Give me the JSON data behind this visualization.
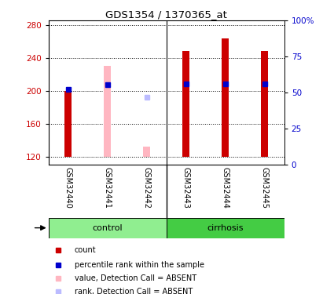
{
  "title": "GDS1354 / 1370365_at",
  "samples": [
    "GSM32440",
    "GSM32441",
    "GSM32442",
    "GSM32443",
    "GSM32444",
    "GSM32445"
  ],
  "groups": [
    "control",
    "control",
    "control",
    "cirrhosis",
    "cirrhosis",
    "cirrhosis"
  ],
  "ylim_left": [
    110,
    285
  ],
  "ylim_right": [
    0,
    100
  ],
  "yticks_left": [
    120,
    160,
    200,
    240,
    280
  ],
  "yticks_right": [
    0,
    25,
    50,
    75,
    100
  ],
  "red_bars": {
    "bottom": [
      120,
      120,
      120,
      120,
      120,
      120
    ],
    "top": [
      200,
      120,
      120,
      248,
      263,
      248
    ]
  },
  "pink_bars": {
    "bottom": [
      120,
      120,
      120,
      120,
      120,
      120
    ],
    "top": [
      120,
      230,
      132,
      120,
      120,
      120
    ]
  },
  "blue_squares": {
    "x": [
      0,
      1,
      3,
      4,
      5
    ],
    "y": [
      201,
      207,
      208,
      208,
      208
    ]
  },
  "light_blue_squares": {
    "x": [
      2
    ],
    "y": [
      192
    ]
  },
  "red_color": "#CC0000",
  "pink_color": "#FFB6C1",
  "blue_color": "#0000CC",
  "light_blue_color": "#BBBBFF",
  "left_axis_color": "#CC0000",
  "right_axis_color": "#0000CC",
  "control_color": "#90EE90",
  "cirrhosis_color": "#44CC44",
  "sample_box_color": "#CCCCCC",
  "legend_items": [
    "count",
    "percentile rank within the sample",
    "value, Detection Call = ABSENT",
    "rank, Detection Call = ABSENT"
  ],
  "legend_colors": [
    "#CC0000",
    "#0000CC",
    "#FFB6C1",
    "#BBBBFF"
  ]
}
